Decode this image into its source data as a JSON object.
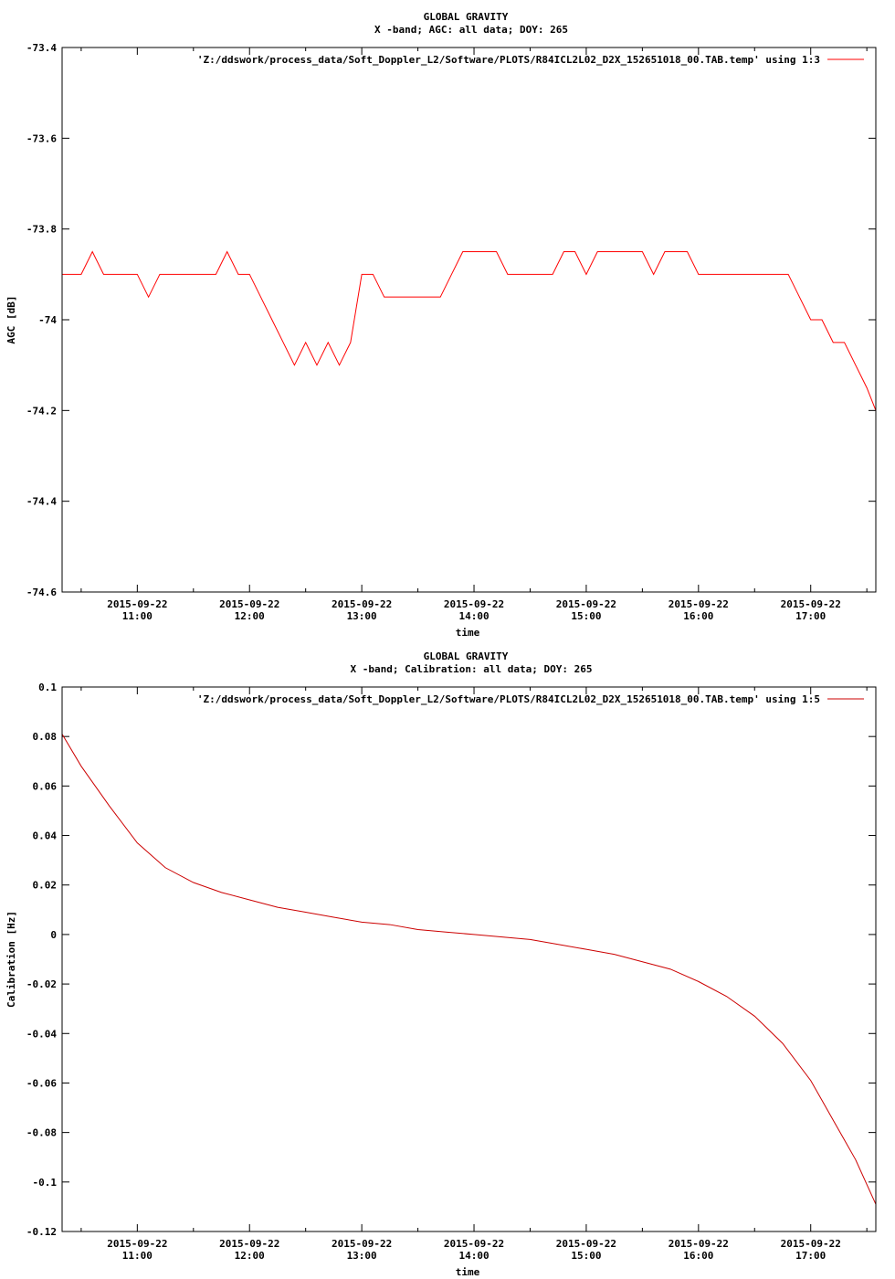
{
  "chart_data": [
    {
      "type": "line",
      "title": "GLOBAL GRAVITY",
      "subtitle": "X -band; AGC: all data; DOY: 265",
      "xlabel": "time",
      "ylabel": "AGC [dB]",
      "ylim": [
        -74.6,
        -73.4
      ],
      "yticks": [
        "-73.4",
        "-73.6",
        "-73.8",
        "-74",
        "-74.2",
        "-74.4",
        "-74.6"
      ],
      "ytick_values": [
        -73.4,
        -73.6,
        -73.8,
        -74,
        -74.2,
        -74.4,
        -74.6
      ],
      "xlim": [
        10.33,
        17.58
      ],
      "xticks": [
        {
          "value": 11,
          "date": "2015-09-22",
          "time": "11:00"
        },
        {
          "value": 12,
          "date": "2015-09-22",
          "time": "12:00"
        },
        {
          "value": 13,
          "date": "2015-09-22",
          "time": "13:00"
        },
        {
          "value": 14,
          "date": "2015-09-22",
          "time": "14:00"
        },
        {
          "value": 15,
          "date": "2015-09-22",
          "time": "15:00"
        },
        {
          "value": 16,
          "date": "2015-09-22",
          "time": "16:00"
        },
        {
          "value": 17,
          "date": "2015-09-22",
          "time": "17:00"
        }
      ],
      "grid": false,
      "legend_position": "top-right",
      "series": [
        {
          "name": "'Z:/ddswork/process_data/Soft_Doppler_L2/Software/PLOTS/R84ICL2L02_D2X_152651018_00.TAB.temp' using 1:3",
          "color": "#ff0000",
          "x": [
            10.33,
            10.4,
            10.5,
            10.6,
            10.7,
            10.8,
            10.9,
            11.0,
            11.1,
            11.2,
            11.3,
            11.4,
            11.5,
            11.6,
            11.7,
            11.8,
            11.9,
            12.0,
            12.1,
            12.2,
            12.3,
            12.4,
            12.5,
            12.6,
            12.7,
            12.8,
            12.9,
            13.0,
            13.1,
            13.2,
            13.3,
            13.4,
            13.5,
            13.6,
            13.7,
            13.8,
            13.9,
            14.0,
            14.1,
            14.2,
            14.3,
            14.4,
            14.5,
            14.6,
            14.7,
            14.8,
            14.9,
            15.0,
            15.1,
            15.2,
            15.3,
            15.4,
            15.5,
            15.6,
            15.7,
            15.8,
            15.9,
            16.0,
            16.1,
            16.2,
            16.3,
            16.4,
            16.5,
            16.6,
            16.7,
            16.8,
            16.9,
            17.0,
            17.1,
            17.2,
            17.3,
            17.4,
            17.5,
            17.58
          ],
          "values": [
            -73.9,
            -73.9,
            -73.9,
            -73.85,
            -73.9,
            -73.9,
            -73.9,
            -73.9,
            -73.95,
            -73.9,
            -73.9,
            -73.9,
            -73.9,
            -73.9,
            -73.9,
            -73.85,
            -73.9,
            -73.9,
            -73.95,
            -74.0,
            -74.05,
            -74.1,
            -74.05,
            -74.1,
            -74.05,
            -74.1,
            -74.05,
            -73.9,
            -73.9,
            -73.95,
            -73.95,
            -73.95,
            -73.95,
            -73.95,
            -73.95,
            -73.9,
            -73.85,
            -73.85,
            -73.85,
            -73.85,
            -73.9,
            -73.9,
            -73.9,
            -73.9,
            -73.9,
            -73.85,
            -73.85,
            -73.9,
            -73.85,
            -73.85,
            -73.85,
            -73.85,
            -73.85,
            -73.9,
            -73.85,
            -73.85,
            -73.85,
            -73.9,
            -73.9,
            -73.9,
            -73.9,
            -73.9,
            -73.9,
            -73.9,
            -73.9,
            -73.9,
            -73.95,
            -74.0,
            -74.0,
            -74.05,
            -74.05,
            -74.1,
            -74.15,
            -74.2
          ]
        }
      ]
    },
    {
      "type": "line",
      "title": "GLOBAL GRAVITY",
      "subtitle": "X -band; Calibration: all data; DOY: 265",
      "xlabel": "time",
      "ylabel": "Calibration [Hz]",
      "ylim": [
        -0.12,
        0.1
      ],
      "yticks": [
        "0.1",
        "0.08",
        "0.06",
        "0.04",
        "0.02",
        "0",
        "-0.02",
        "-0.04",
        "-0.06",
        "-0.08",
        "-0.1",
        "-0.12"
      ],
      "ytick_values": [
        0.1,
        0.08,
        0.06,
        0.04,
        0.02,
        0,
        -0.02,
        -0.04,
        -0.06,
        -0.08,
        -0.1,
        -0.12
      ],
      "xlim": [
        10.33,
        17.58
      ],
      "xticks": [
        {
          "value": 11,
          "date": "2015-09-22",
          "time": "11:00"
        },
        {
          "value": 12,
          "date": "2015-09-22",
          "time": "12:00"
        },
        {
          "value": 13,
          "date": "2015-09-22",
          "time": "13:00"
        },
        {
          "value": 14,
          "date": "2015-09-22",
          "time": "14:00"
        },
        {
          "value": 15,
          "date": "2015-09-22",
          "time": "15:00"
        },
        {
          "value": 16,
          "date": "2015-09-22",
          "time": "16:00"
        },
        {
          "value": 17,
          "date": "2015-09-22",
          "time": "17:00"
        }
      ],
      "grid": false,
      "legend_position": "top-right",
      "series": [
        {
          "name": "'Z:/ddswork/process_data/Soft_Doppler_L2/Software/PLOTS/R84ICL2L02_D2X_152651018_00.TAB.temp' using 1:5",
          "color": "#cc0000",
          "x": [
            10.33,
            10.5,
            10.75,
            11.0,
            11.25,
            11.5,
            11.75,
            12.0,
            12.25,
            12.5,
            12.75,
            13.0,
            13.25,
            13.5,
            13.75,
            14.0,
            14.25,
            14.5,
            14.75,
            15.0,
            15.25,
            15.5,
            15.75,
            16.0,
            16.25,
            16.5,
            16.75,
            17.0,
            17.1,
            17.2,
            17.3,
            17.4,
            17.5,
            17.58
          ],
          "values": [
            0.081,
            0.068,
            0.052,
            0.037,
            0.027,
            0.021,
            0.017,
            0.014,
            0.011,
            0.009,
            0.007,
            0.005,
            0.004,
            0.002,
            0.001,
            0.0,
            -0.001,
            -0.002,
            -0.004,
            -0.006,
            -0.008,
            -0.011,
            -0.014,
            -0.019,
            -0.025,
            -0.033,
            -0.044,
            -0.059,
            -0.067,
            -0.075,
            -0.083,
            -0.091,
            -0.101,
            -0.109
          ]
        }
      ]
    }
  ]
}
